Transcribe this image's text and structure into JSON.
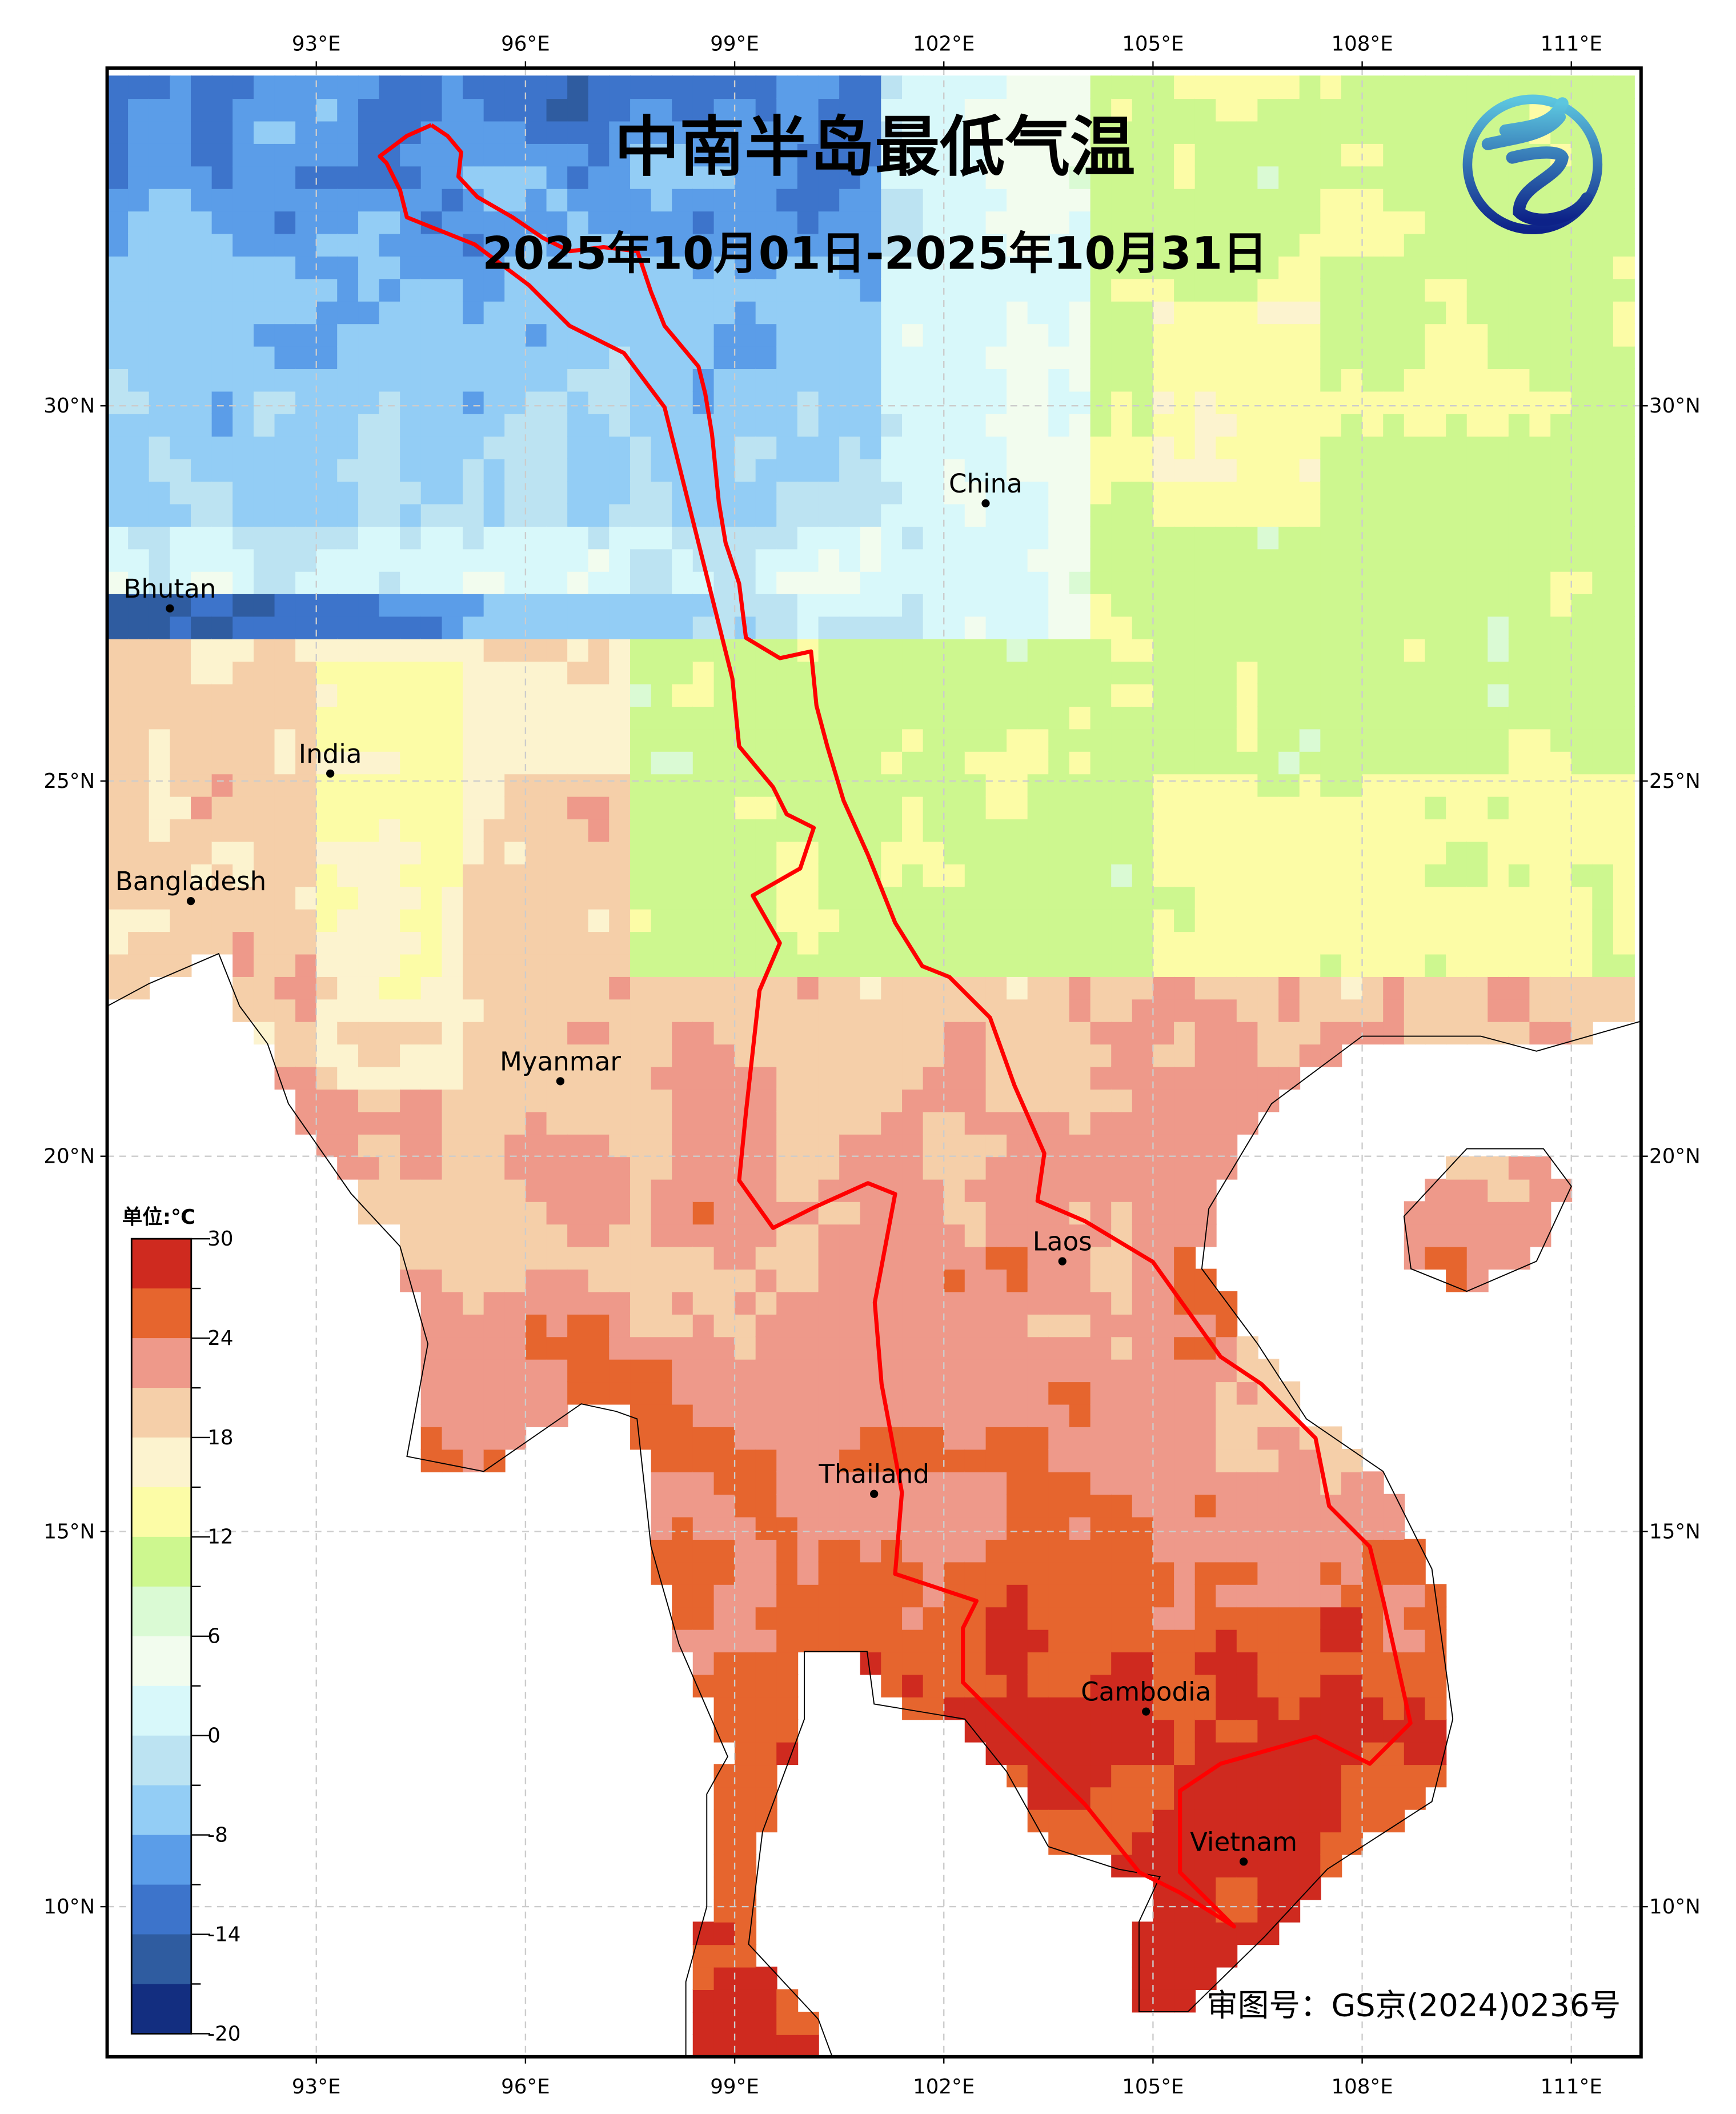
{
  "map": {
    "title": "中南半岛最低气温",
    "subtitle": "2025年10月01日-2025年10月31日",
    "approval_number": "审图号：GS京(2024)0236号",
    "logo": "china-meteorological-logo"
  },
  "axes": {
    "lon_labels": [
      "93°E",
      "96°E",
      "99°E",
      "102°E",
      "105°E",
      "108°E",
      "111°E"
    ],
    "lon_values": [
      93,
      96,
      99,
      102,
      105,
      108,
      111
    ],
    "lat_labels": [
      "30°N",
      "25°N",
      "20°N",
      "15°N",
      "10°N"
    ],
    "lat_values": [
      30,
      25,
      20,
      15,
      10
    ],
    "lon_range": [
      90,
      112
    ],
    "lat_range": [
      8,
      34.5
    ]
  },
  "colorbar": {
    "unit": "单位:℃",
    "tick_labels": [
      "30",
      "24",
      "18",
      "12",
      "6",
      "0",
      "-8",
      "-14",
      "-20"
    ],
    "bins_top_to_bottom": [
      "#cf2a1f",
      "#e6652e",
      "#ee998a",
      "#f5cfa9",
      "#fcf3cf",
      "#fcfca6",
      "#cdf78f",
      "#dafad4",
      "#f2fcee",
      "#d8f8fa",
      "#bce3f2",
      "#93cdf5",
      "#5b9de8",
      "#3d74cb",
      "#2f5ca0",
      "#132e80"
    ],
    "bin_edges": [
      30,
      27,
      24,
      21,
      18,
      15,
      12,
      9,
      6,
      3,
      0,
      -4,
      -8,
      -11,
      -14,
      -17,
      -20
    ]
  },
  "countries": [
    {
      "name": "Bhutan",
      "lon": 90.9,
      "lat": 27.3
    },
    {
      "name": "India",
      "lon": 93.2,
      "lat": 25.1
    },
    {
      "name": "Bangladesh",
      "lon": 91.2,
      "lat": 23.4
    },
    {
      "name": "Myanmar",
      "lon": 96.5,
      "lat": 21.0
    },
    {
      "name": "China",
      "lon": 102.6,
      "lat": 28.7
    },
    {
      "name": "Laos",
      "lon": 103.7,
      "lat": 18.6
    },
    {
      "name": "Thailand",
      "lon": 101.0,
      "lat": 15.5
    },
    {
      "name": "Cambodia",
      "lon": 104.9,
      "lat": 12.6
    },
    {
      "name": "Vietnam",
      "lon": 106.3,
      "lat": 10.6
    }
  ],
  "colors": {
    "basin_outline": "#ff0000",
    "frame": "#000000",
    "grid": "#cccccc"
  }
}
